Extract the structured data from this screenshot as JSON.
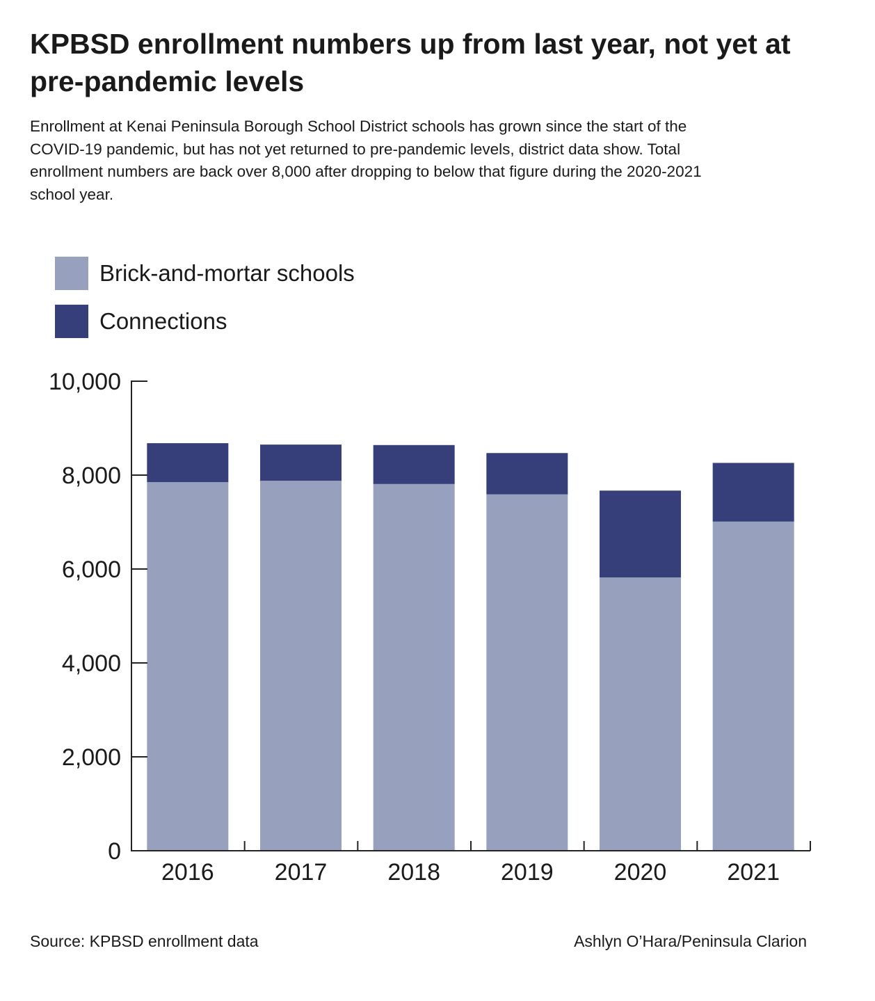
{
  "title": "KPBSD enrollment numbers up from last year, not yet at pre-pandemic levels",
  "subtitle": "Enrollment at Kenai Peninsula Borough School District schools has grown since the start of the COVID-19 pandemic, but has not yet returned to pre-pandemic levels, district data show. Total enrollment numbers are back over 8,000 after dropping to below that figure during the 2020-2021 school year.",
  "source": "Source: KPBSD enrollment data",
  "credit": "Ashlyn O’Hara/Peninsula Clarion",
  "chart_data": {
    "type": "bar",
    "stacked": true,
    "categories": [
      "2016",
      "2017",
      "2018",
      "2019",
      "2020",
      "2021"
    ],
    "series": [
      {
        "name": "Brick-and-mortar schools",
        "color": "#97a1bd",
        "values": [
          7850,
          7880,
          7810,
          7590,
          5820,
          7010
        ]
      },
      {
        "name": "Connections",
        "color": "#363f7a",
        "values": [
          830,
          770,
          830,
          880,
          1850,
          1250
        ]
      }
    ],
    "ylim": [
      0,
      10000
    ],
    "yticks": [
      0,
      2000,
      4000,
      6000,
      8000,
      10000
    ],
    "ytick_labels": [
      "0",
      "2,000",
      "4,000",
      "6,000",
      "8,000",
      "10,000"
    ],
    "grid": false,
    "legend_position": "top-left",
    "xlabel": "",
    "ylabel": ""
  }
}
